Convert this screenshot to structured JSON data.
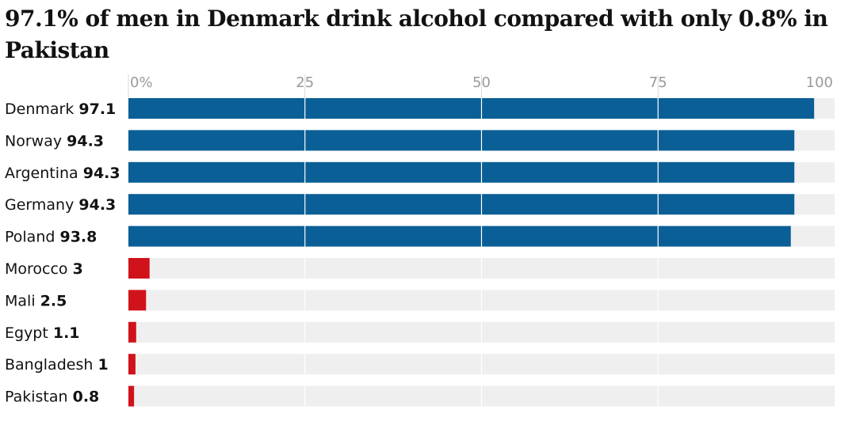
{
  "title": "97.1% of men in Denmark drink alcohol compared with only 0.8% in Pakistan",
  "colors": {
    "high": "#0a5f96",
    "low": "#d0131b",
    "track": "#efefef",
    "grid": "#ffffff",
    "axis_text": "#9a9a9a"
  },
  "chart_data": {
    "type": "bar",
    "orientation": "horizontal",
    "title": "97.1% of men in Denmark drink alcohol compared with only 0.8% in Pakistan",
    "xlim": [
      0,
      100
    ],
    "ticks": [
      {
        "value": 0,
        "label": "0%"
      },
      {
        "value": 25,
        "label": "25"
      },
      {
        "value": 50,
        "label": "50"
      },
      {
        "value": 75,
        "label": "75"
      },
      {
        "value": 100,
        "label": "100"
      }
    ],
    "categories": [
      "Denmark",
      "Norway",
      "Argentina",
      "Germany",
      "Poland",
      "Morocco",
      "Mali",
      "Egypt",
      "Bangladesh",
      "Pakistan"
    ],
    "values": [
      97.1,
      94.3,
      94.3,
      94.3,
      93.8,
      3,
      2.5,
      1.1,
      1,
      0.8
    ],
    "value_labels": [
      "97.1",
      "94.3",
      "94.3",
      "94.3",
      "93.8",
      "3",
      "2.5",
      "1.1",
      "1",
      "0.8"
    ],
    "groups": [
      "high",
      "high",
      "high",
      "high",
      "high",
      "low",
      "low",
      "low",
      "low",
      "low"
    ]
  }
}
